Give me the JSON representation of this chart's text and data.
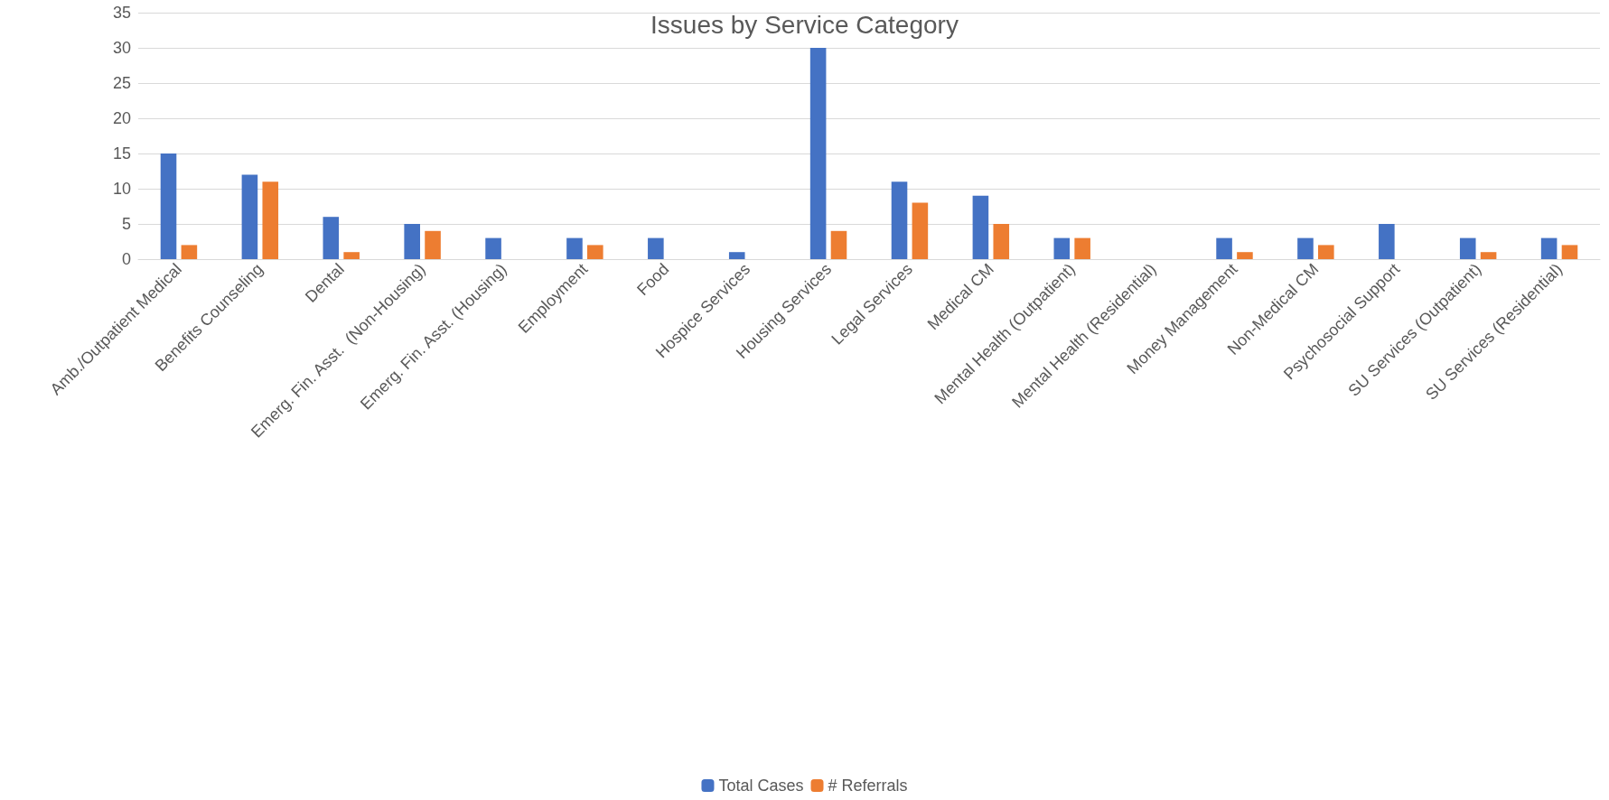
{
  "chart_data": {
    "type": "bar",
    "title": "Issues by Service Category",
    "categories": [
      "Amb./Outpatient Medical",
      "Benefits Counseling",
      "Dental",
      "Emerg. Fin. Asst.  (Non-Housing)",
      "Emerg. Fin. Asst. (Housing)",
      "Employment",
      "Food",
      "Hospice Services",
      "Housing Services",
      "Legal Services",
      "Medical CM",
      "Mental Health (Outpatient)",
      "Mental Health (Residential)",
      "Money Management",
      "Non-Medical CM",
      "Psychosocial Support",
      "SU Services (Outpatient)",
      "SU Services (Residential)"
    ],
    "series": [
      {
        "name": "Total Cases",
        "color": "#4472c4",
        "values": [
          15,
          12,
          6,
          5,
          3,
          3,
          3,
          1,
          30,
          11,
          9,
          3,
          0,
          3,
          3,
          5,
          3,
          3
        ]
      },
      {
        "name": "# Referrals",
        "color": "#ed7d31",
        "values": [
          2,
          11,
          1,
          4,
          0,
          2,
          0,
          0,
          4,
          8,
          5,
          3,
          0,
          1,
          2,
          0,
          1,
          2
        ]
      }
    ],
    "ylim": [
      0,
      35
    ],
    "yticks": [
      0,
      5,
      10,
      15,
      20,
      25,
      30,
      35
    ],
    "grid": "y",
    "legend": "bottom"
  }
}
